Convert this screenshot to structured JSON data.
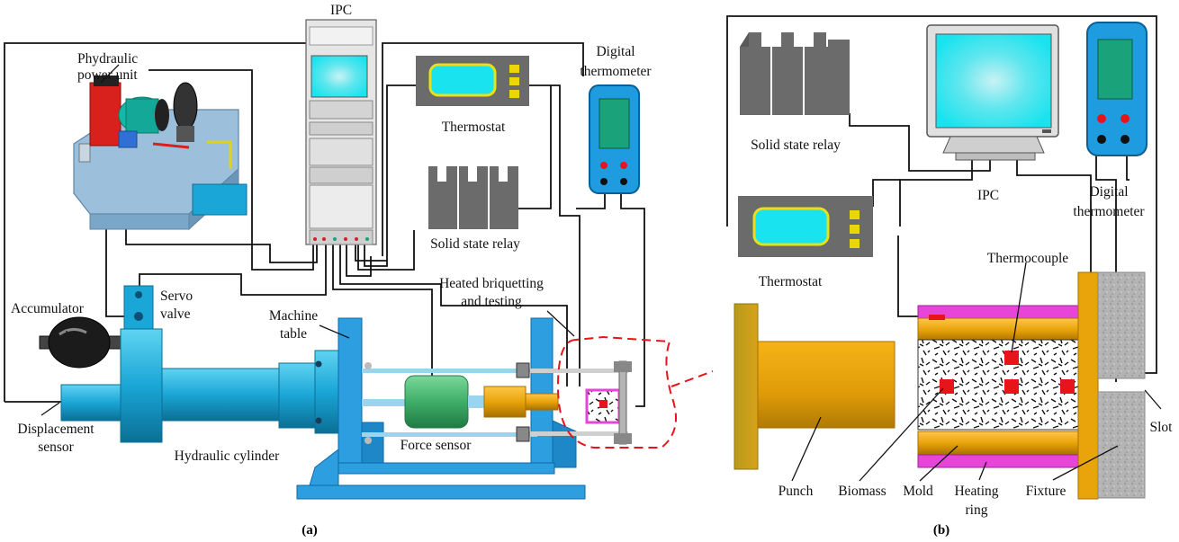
{
  "panel_a": {
    "caption": "(a)",
    "labels": {
      "ipc": "IPC",
      "hydraulic_power_unit": [
        "Phydraulic",
        "power unit"
      ],
      "digital_thermometer": [
        "Digital",
        "thermometer"
      ],
      "thermostat": "Thermostat",
      "solid_state_relay": "Solid state relay",
      "heated_briquetting": [
        "Heated briquetting",
        "and testing"
      ],
      "servo_valve": [
        "Servo",
        "valve"
      ],
      "machine_table": [
        "Machine",
        "table"
      ],
      "accumulator": "Accumulator",
      "displacement_sensor": [
        "Displacement",
        "sensor"
      ],
      "hydraulic_cylinder": "Hydraulic cylinder",
      "force_sensor": "Force sensor"
    }
  },
  "panel_b": {
    "caption": "(b)",
    "labels": {
      "solid_state_relay": "Solid state relay",
      "ipc": "IPC",
      "digital_thermometer": [
        "Digital",
        "thermometer"
      ],
      "thermostat": "Thermostat",
      "thermocouple": "Thermocouple",
      "slot": "Slot",
      "punch": "Punch",
      "biomass": "Biomass",
      "mold": "Mold",
      "heating_ring": [
        "Heating",
        "ring"
      ],
      "fixture": "Fixture"
    }
  },
  "colors": {
    "hydraulic_blue": "#1aa6d6",
    "frame_blue": "#2d9ee0",
    "screen_cyan": "#19e3ef",
    "thermometer_body": "#1f9be0",
    "display_green": "#1aa37a",
    "relay_gray": "#6b6b6b",
    "force_sensor_green": "#3fae68",
    "mold_orange": "#e8a40a",
    "heating_ring_magenta": "#e645d8",
    "thermocouple_red": "#e8141c",
    "leader_red": "#e8141c",
    "fixture_gray": "#b4b4b4"
  }
}
